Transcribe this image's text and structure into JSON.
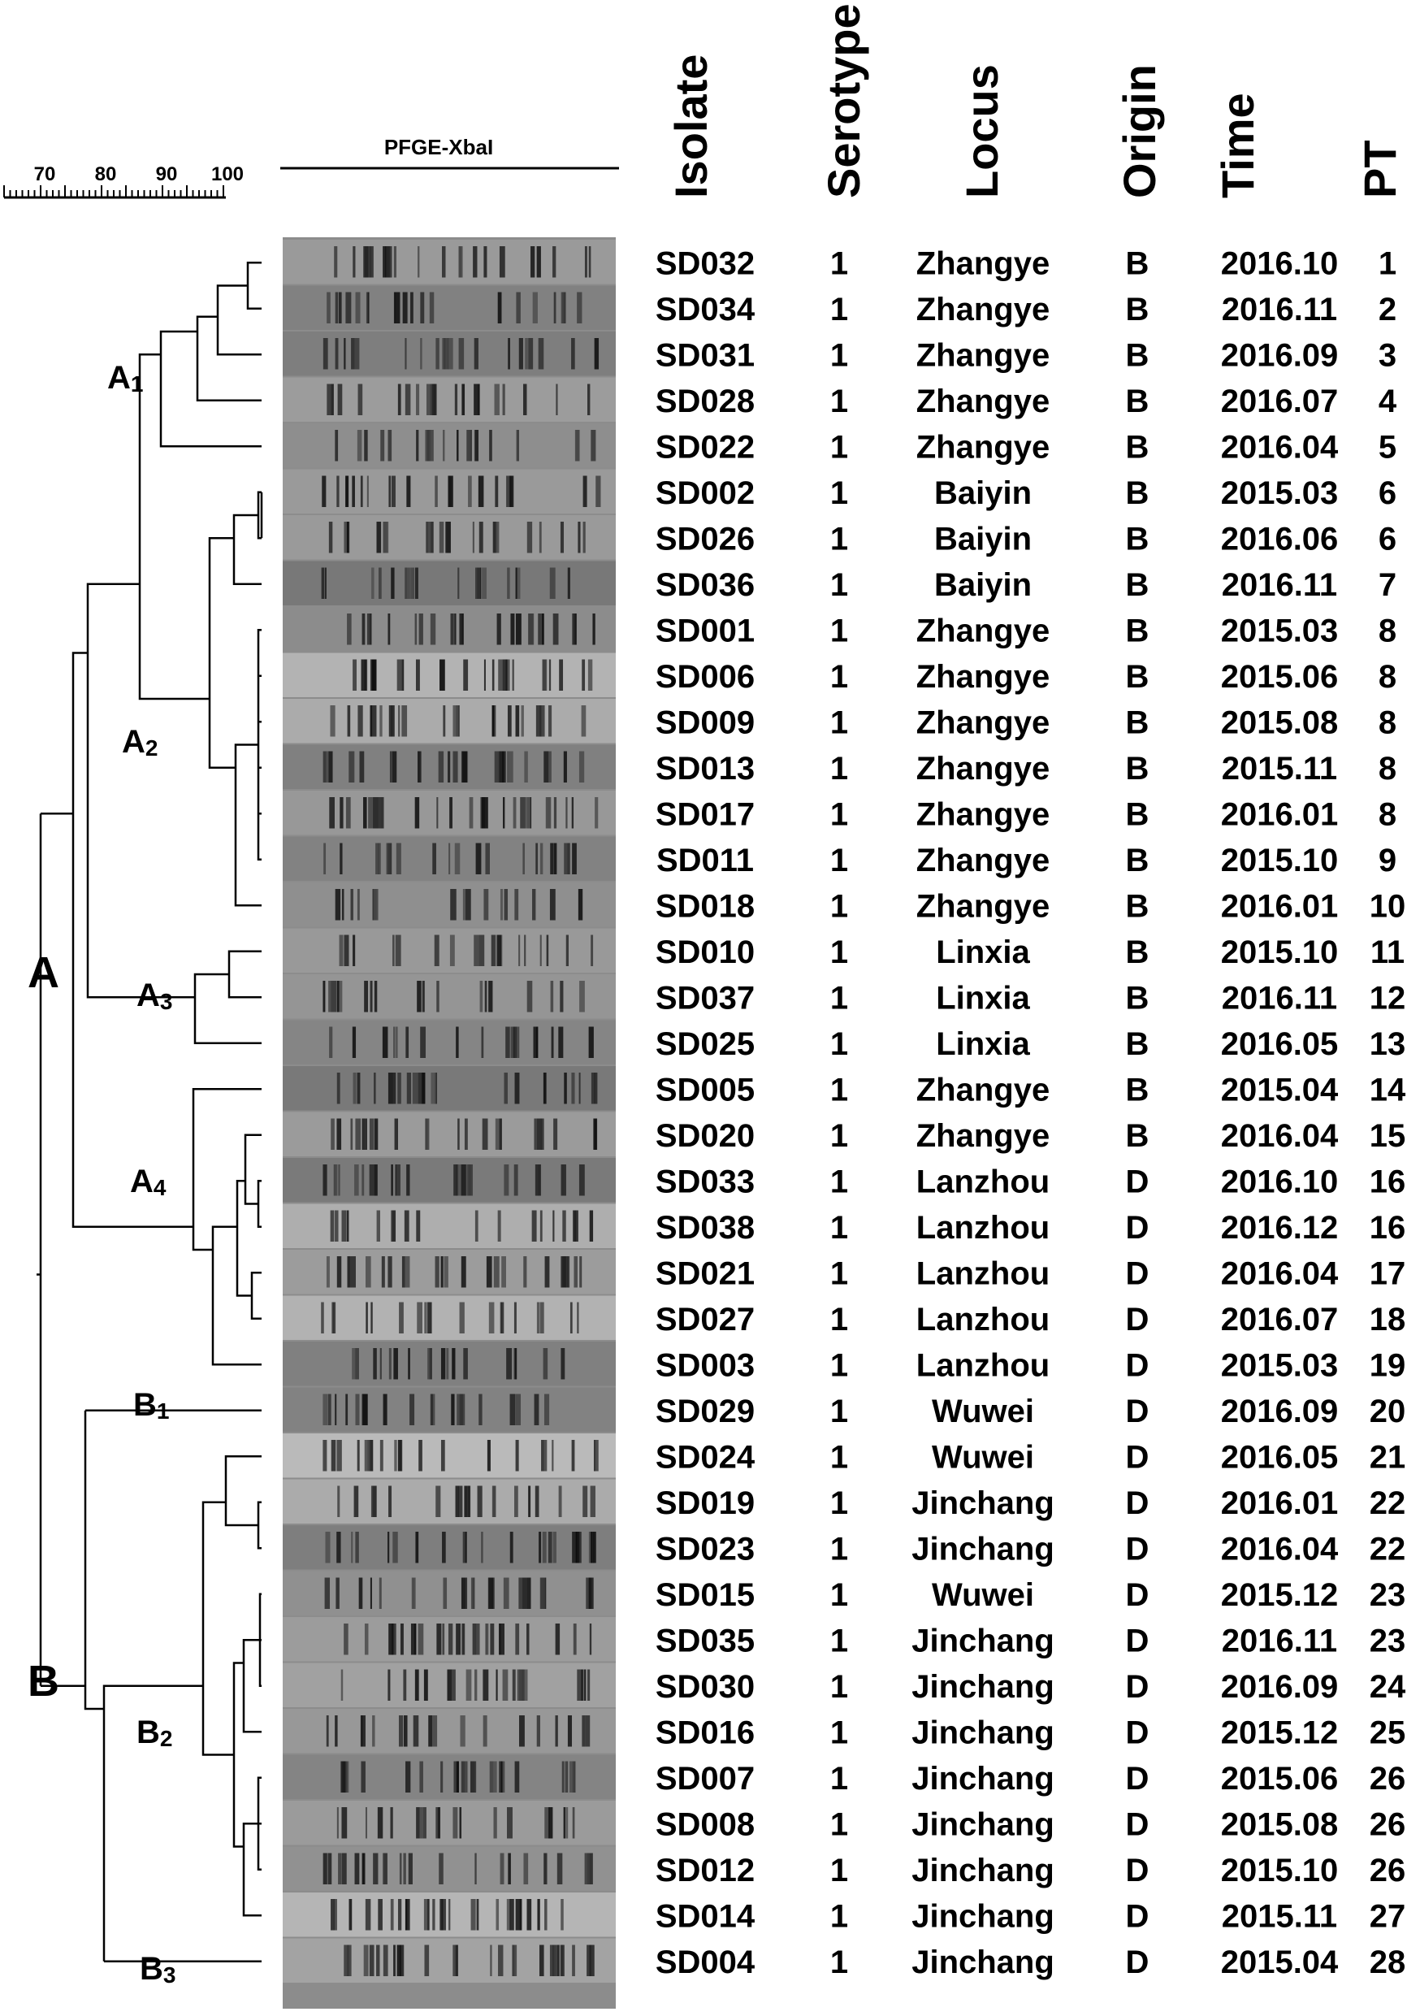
{
  "gel_title": "PFGE-XbaI",
  "similarity_scale": {
    "ticks": [
      "70",
      "80",
      "90",
      "100"
    ]
  },
  "headers": {
    "isolate": "Isolate",
    "serotype": "Serotype",
    "locus": "Locus",
    "origin": "Origin",
    "time": "Time",
    "pt": "PT"
  },
  "clusters": {
    "A": "A",
    "B": "B",
    "A1": {
      "letter": "A",
      "sub": "1"
    },
    "A2": {
      "letter": "A",
      "sub": "2"
    },
    "A3": {
      "letter": "A",
      "sub": "3"
    },
    "A4": {
      "letter": "A",
      "sub": "4"
    },
    "B1": {
      "letter": "B",
      "sub": "1"
    },
    "B2": {
      "letter": "B",
      "sub": "2"
    },
    "B3": {
      "letter": "B",
      "sub": "3"
    }
  },
  "rows": [
    {
      "isolate": "SD032",
      "serotype": "1",
      "locus": "Zhangye",
      "origin": "B",
      "time": "2016.10",
      "pt": "1"
    },
    {
      "isolate": "SD034",
      "serotype": "1",
      "locus": "Zhangye",
      "origin": "B",
      "time": "2016.11",
      "pt": "2"
    },
    {
      "isolate": "SD031",
      "serotype": "1",
      "locus": "Zhangye",
      "origin": "B",
      "time": "2016.09",
      "pt": "3"
    },
    {
      "isolate": "SD028",
      "serotype": "1",
      "locus": "Zhangye",
      "origin": "B",
      "time": "2016.07",
      "pt": "4"
    },
    {
      "isolate": "SD022",
      "serotype": "1",
      "locus": "Zhangye",
      "origin": "B",
      "time": "2016.04",
      "pt": "5"
    },
    {
      "isolate": "SD002",
      "serotype": "1",
      "locus": "Baiyin",
      "origin": "B",
      "time": "2015.03",
      "pt": "6"
    },
    {
      "isolate": "SD026",
      "serotype": "1",
      "locus": "Baiyin",
      "origin": "B",
      "time": "2016.06",
      "pt": "6"
    },
    {
      "isolate": "SD036",
      "serotype": "1",
      "locus": "Baiyin",
      "origin": "B",
      "time": "2016.11",
      "pt": "7"
    },
    {
      "isolate": "SD001",
      "serotype": "1",
      "locus": "Zhangye",
      "origin": "B",
      "time": "2015.03",
      "pt": "8"
    },
    {
      "isolate": "SD006",
      "serotype": "1",
      "locus": "Zhangye",
      "origin": "B",
      "time": "2015.06",
      "pt": "8"
    },
    {
      "isolate": "SD009",
      "serotype": "1",
      "locus": "Zhangye",
      "origin": "B",
      "time": "2015.08",
      "pt": "8"
    },
    {
      "isolate": "SD013",
      "serotype": "1",
      "locus": "Zhangye",
      "origin": "B",
      "time": "2015.11",
      "pt": "8"
    },
    {
      "isolate": "SD017",
      "serotype": "1",
      "locus": "Zhangye",
      "origin": "B",
      "time": "2016.01",
      "pt": "8"
    },
    {
      "isolate": "SD011",
      "serotype": "1",
      "locus": "Zhangye",
      "origin": "B",
      "time": "2015.10",
      "pt": "9"
    },
    {
      "isolate": "SD018",
      "serotype": "1",
      "locus": "Zhangye",
      "origin": "B",
      "time": "2016.01",
      "pt": "10"
    },
    {
      "isolate": "SD010",
      "serotype": "1",
      "locus": "Linxia",
      "origin": "B",
      "time": "2015.10",
      "pt": "11"
    },
    {
      "isolate": "SD037",
      "serotype": "1",
      "locus": "Linxia",
      "origin": "B",
      "time": "2016.11",
      "pt": "12"
    },
    {
      "isolate": "SD025",
      "serotype": "1",
      "locus": "Linxia",
      "origin": "B",
      "time": "2016.05",
      "pt": "13"
    },
    {
      "isolate": "SD005",
      "serotype": "1",
      "locus": "Zhangye",
      "origin": "B",
      "time": "2015.04",
      "pt": "14"
    },
    {
      "isolate": "SD020",
      "serotype": "1",
      "locus": "Zhangye",
      "origin": "B",
      "time": "2016.04",
      "pt": "15"
    },
    {
      "isolate": "SD033",
      "serotype": "1",
      "locus": "Lanzhou",
      "origin": "D",
      "time": "2016.10",
      "pt": "16"
    },
    {
      "isolate": "SD038",
      "serotype": "1",
      "locus": "Lanzhou",
      "origin": "D",
      "time": "2016.12",
      "pt": "16"
    },
    {
      "isolate": "SD021",
      "serotype": "1",
      "locus": "Lanzhou",
      "origin": "D",
      "time": "2016.04",
      "pt": "17"
    },
    {
      "isolate": "SD027",
      "serotype": "1",
      "locus": "Lanzhou",
      "origin": "D",
      "time": "2016.07",
      "pt": "18"
    },
    {
      "isolate": "SD003",
      "serotype": "1",
      "locus": "Lanzhou",
      "origin": "D",
      "time": "2015.03",
      "pt": "19"
    },
    {
      "isolate": "SD029",
      "serotype": "1",
      "locus": "Wuwei",
      "origin": "D",
      "time": "2016.09",
      "pt": "20"
    },
    {
      "isolate": "SD024",
      "serotype": "1",
      "locus": "Wuwei",
      "origin": "D",
      "time": "2016.05",
      "pt": "21"
    },
    {
      "isolate": "SD019",
      "serotype": "1",
      "locus": "Jinchang",
      "origin": "D",
      "time": "2016.01",
      "pt": "22"
    },
    {
      "isolate": "SD023",
      "serotype": "1",
      "locus": "Jinchang",
      "origin": "D",
      "time": "2016.04",
      "pt": "22"
    },
    {
      "isolate": "SD015",
      "serotype": "1",
      "locus": "Wuwei",
      "origin": "D",
      "time": "2015.12",
      "pt": "23"
    },
    {
      "isolate": "SD035",
      "serotype": "1",
      "locus": "Jinchang",
      "origin": "D",
      "time": "2016.11",
      "pt": "23"
    },
    {
      "isolate": "SD030",
      "serotype": "1",
      "locus": "Jinchang",
      "origin": "D",
      "time": "2016.09",
      "pt": "24"
    },
    {
      "isolate": "SD016",
      "serotype": "1",
      "locus": "Jinchang",
      "origin": "D",
      "time": "2015.12",
      "pt": "25"
    },
    {
      "isolate": "SD007",
      "serotype": "1",
      "locus": "Jinchang",
      "origin": "D",
      "time": "2015.06",
      "pt": "26"
    },
    {
      "isolate": "SD008",
      "serotype": "1",
      "locus": "Jinchang",
      "origin": "D",
      "time": "2015.08",
      "pt": "26"
    },
    {
      "isolate": "SD012",
      "serotype": "1",
      "locus": "Jinchang",
      "origin": "D",
      "time": "2015.10",
      "pt": "26"
    },
    {
      "isolate": "SD014",
      "serotype": "1",
      "locus": "Jinchang",
      "origin": "D",
      "time": "2015.11",
      "pt": "27"
    },
    {
      "isolate": "SD004",
      "serotype": "1",
      "locus": "Jinchang",
      "origin": "D",
      "time": "2015.04",
      "pt": "28"
    }
  ]
}
